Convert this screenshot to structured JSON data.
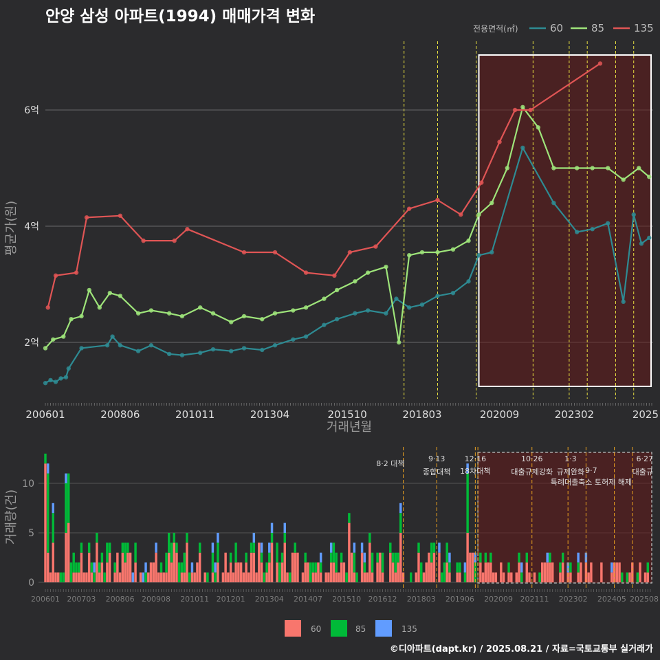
{
  "title": "안양 삼성 아파트(1994) 매매가격 변화",
  "footer": "©디아파트(dapt.kr) / 2025.08.21 / 자료=국토교통부 실거래가",
  "legend_top": {
    "title": "전용면적(㎡)",
    "items": [
      {
        "label": "60",
        "color": "#2e8b93"
      },
      {
        "label": "85",
        "color": "#9ee47a"
      },
      {
        "label": "135",
        "color": "#e05555"
      }
    ]
  },
  "legend_bottom": {
    "items": [
      {
        "label": "60",
        "color": "#f8766d"
      },
      {
        "label": "85",
        "color": "#00ba38"
      },
      {
        "label": "135",
        "color": "#619cff"
      }
    ]
  },
  "chart_data": [
    {
      "type": "line",
      "xlabel": "거래년월",
      "ylabel": "평균가(원)",
      "x_ticks": [
        "200601",
        "200806",
        "201011",
        "201304",
        "201510",
        "201803",
        "202009",
        "202302",
        "2025"
      ],
      "y_ticks": [
        "2억",
        "4억",
        "6억"
      ],
      "ylim": [
        1.1,
        7.0
      ],
      "y_unit": "억",
      "vlines": [
        "2017-08",
        "2018-09",
        "2019-12",
        "2021-10",
        "2022-12",
        "2023-07",
        "2024-06",
        "2025-01"
      ],
      "highlight_range": [
        "2020-01",
        "2025-08"
      ],
      "series": [
        {
          "name": "60",
          "color": "#2e8b93",
          "points": [
            [
              "2006-01",
              1.3
            ],
            [
              "2006-03",
              1.35
            ],
            [
              "2006-05",
              1.32
            ],
            [
              "2006-07",
              1.38
            ],
            [
              "2006-09",
              1.4
            ],
            [
              "2006-10",
              1.55
            ],
            [
              "2007-03",
              1.9
            ],
            [
              "2008-01",
              1.95
            ],
            [
              "2008-03",
              2.1
            ],
            [
              "2008-06",
              1.95
            ],
            [
              "2009-01",
              1.85
            ],
            [
              "2009-06",
              1.95
            ],
            [
              "2010-01",
              1.8
            ],
            [
              "2010-06",
              1.78
            ],
            [
              "2011-01",
              1.82
            ],
            [
              "2011-06",
              1.88
            ],
            [
              "2012-01",
              1.85
            ],
            [
              "2012-06",
              1.9
            ],
            [
              "2013-01",
              1.87
            ],
            [
              "2013-06",
              1.95
            ],
            [
              "2014-01",
              2.05
            ],
            [
              "2014-06",
              2.1
            ],
            [
              "2015-01",
              2.3
            ],
            [
              "2015-06",
              2.4
            ],
            [
              "2016-01",
              2.5
            ],
            [
              "2016-06",
              2.55
            ],
            [
              "2017-01",
              2.5
            ],
            [
              "2017-05",
              2.75
            ],
            [
              "2017-10",
              2.6
            ],
            [
              "2018-03",
              2.65
            ],
            [
              "2018-09",
              2.8
            ],
            [
              "2019-03",
              2.85
            ],
            [
              "2019-09",
              3.05
            ],
            [
              "2020-01",
              3.5
            ],
            [
              "2020-06",
              3.55
            ],
            [
              "2021-06",
              5.35
            ],
            [
              "2022-06",
              4.4
            ],
            [
              "2023-03",
              3.9
            ],
            [
              "2023-09",
              3.95
            ],
            [
              "2024-03",
              4.05
            ],
            [
              "2024-09",
              2.7
            ],
            [
              "2025-01",
              4.2
            ],
            [
              "2025-04",
              3.7
            ],
            [
              "2025-07",
              3.8
            ]
          ]
        },
        {
          "name": "85",
          "color": "#9ee47a",
          "points": [
            [
              "2006-01",
              1.9
            ],
            [
              "2006-04",
              2.05
            ],
            [
              "2006-08",
              2.1
            ],
            [
              "2006-11",
              2.4
            ],
            [
              "2007-03",
              2.45
            ],
            [
              "2007-06",
              2.9
            ],
            [
              "2007-10",
              2.6
            ],
            [
              "2008-02",
              2.85
            ],
            [
              "2008-06",
              2.8
            ],
            [
              "2009-01",
              2.5
            ],
            [
              "2009-06",
              2.55
            ],
            [
              "2010-01",
              2.5
            ],
            [
              "2010-06",
              2.45
            ],
            [
              "2011-01",
              2.6
            ],
            [
              "2011-06",
              2.5
            ],
            [
              "2012-01",
              2.35
            ],
            [
              "2012-06",
              2.45
            ],
            [
              "2013-01",
              2.4
            ],
            [
              "2013-06",
              2.5
            ],
            [
              "2014-01",
              2.55
            ],
            [
              "2014-06",
              2.6
            ],
            [
              "2015-01",
              2.75
            ],
            [
              "2015-06",
              2.9
            ],
            [
              "2016-01",
              3.05
            ],
            [
              "2016-06",
              3.2
            ],
            [
              "2017-01",
              3.3
            ],
            [
              "2017-06",
              2.0
            ],
            [
              "2017-10",
              3.5
            ],
            [
              "2018-03",
              3.55
            ],
            [
              "2018-09",
              3.55
            ],
            [
              "2019-03",
              3.6
            ],
            [
              "2019-09",
              3.75
            ],
            [
              "2020-01",
              4.2
            ],
            [
              "2020-06",
              4.4
            ],
            [
              "2020-12",
              5.0
            ],
            [
              "2021-06",
              6.05
            ],
            [
              "2021-12",
              5.7
            ],
            [
              "2022-06",
              5.0
            ],
            [
              "2023-03",
              5.0
            ],
            [
              "2023-09",
              5.0
            ],
            [
              "2024-03",
              5.0
            ],
            [
              "2024-09",
              4.8
            ],
            [
              "2025-03",
              5.0
            ],
            [
              "2025-07",
              4.85
            ]
          ]
        },
        {
          "name": "135",
          "color": "#e05555",
          "points": [
            [
              "2006-02",
              2.6
            ],
            [
              "2006-05",
              3.15
            ],
            [
              "2007-01",
              3.2
            ],
            [
              "2007-05",
              4.15
            ],
            [
              "2008-06",
              4.18
            ],
            [
              "2009-03",
              3.75
            ],
            [
              "2010-03",
              3.75
            ],
            [
              "2010-08",
              3.95
            ],
            [
              "2012-06",
              3.55
            ],
            [
              "2013-06",
              3.55
            ],
            [
              "2014-06",
              3.2
            ],
            [
              "2015-05",
              3.15
            ],
            [
              "2015-11",
              3.55
            ],
            [
              "2016-09",
              3.65
            ],
            [
              "2017-10",
              4.3
            ],
            [
              "2018-09",
              4.45
            ],
            [
              "2019-06",
              4.2
            ],
            [
              "2020-02",
              4.75
            ],
            [
              "2020-09",
              5.45
            ],
            [
              "2021-03",
              6.0
            ],
            [
              "2021-09",
              6.0
            ],
            [
              "2023-12",
              6.8
            ]
          ]
        }
      ]
    },
    {
      "type": "bar",
      "ylabel": "거래량(건)",
      "stacked": true,
      "x_ticks": [
        "200601",
        "200703",
        "200806",
        "200908",
        "201011",
        "201201",
        "201304",
        "201407",
        "201510",
        "201612",
        "201803",
        "201906",
        "202009",
        "202111",
        "202302",
        "202405",
        "202508"
      ],
      "y_ticks": [
        "0",
        "5",
        "10"
      ],
      "ylim": [
        0,
        13
      ],
      "series_names": [
        "60",
        "85",
        "135"
      ],
      "highlights": [
        {
          "month": "2006-01",
          "60": 12,
          "85": 1,
          "135": 0
        },
        {
          "month": "2006-02",
          "60": 3,
          "85": 8,
          "135": 1
        },
        {
          "month": "2006-04",
          "60": 4,
          "85": 3,
          "135": 1
        },
        {
          "month": "2006-09",
          "60": 5,
          "85": 5,
          "135": 1
        },
        {
          "month": "2006-10",
          "60": 6,
          "85": 5,
          "135": 0
        },
        {
          "month": "2007-01",
          "60": 1,
          "85": 1,
          "135": 0
        },
        {
          "month": "2010-03",
          "60": 4,
          "85": 1,
          "135": 0
        },
        {
          "month": "2019-09",
          "60": 5,
          "85": 6,
          "135": 1
        }
      ],
      "annotations": [
        {
          "date": "2017-08",
          "lines": [
            "8·2 대책"
          ]
        },
        {
          "date": "2018-09",
          "lines": [
            "9·13",
            "종합대책"
          ]
        },
        {
          "date": "2019-12",
          "lines": [
            "12·16",
            "18차대책"
          ]
        },
        {
          "date": "2021-10",
          "lines": [
            "10·26",
            "대출규제강화"
          ]
        },
        {
          "date": "2023-01",
          "lines": [
            "1·3",
            "규제완화"
          ]
        },
        {
          "date": "2023-09",
          "lines": [
            "9·7",
            "특례대출축소 토허제 해제"
          ]
        },
        {
          "date": "2025-06",
          "lines": [
            "6·27",
            "대출규"
          ]
        }
      ]
    }
  ]
}
